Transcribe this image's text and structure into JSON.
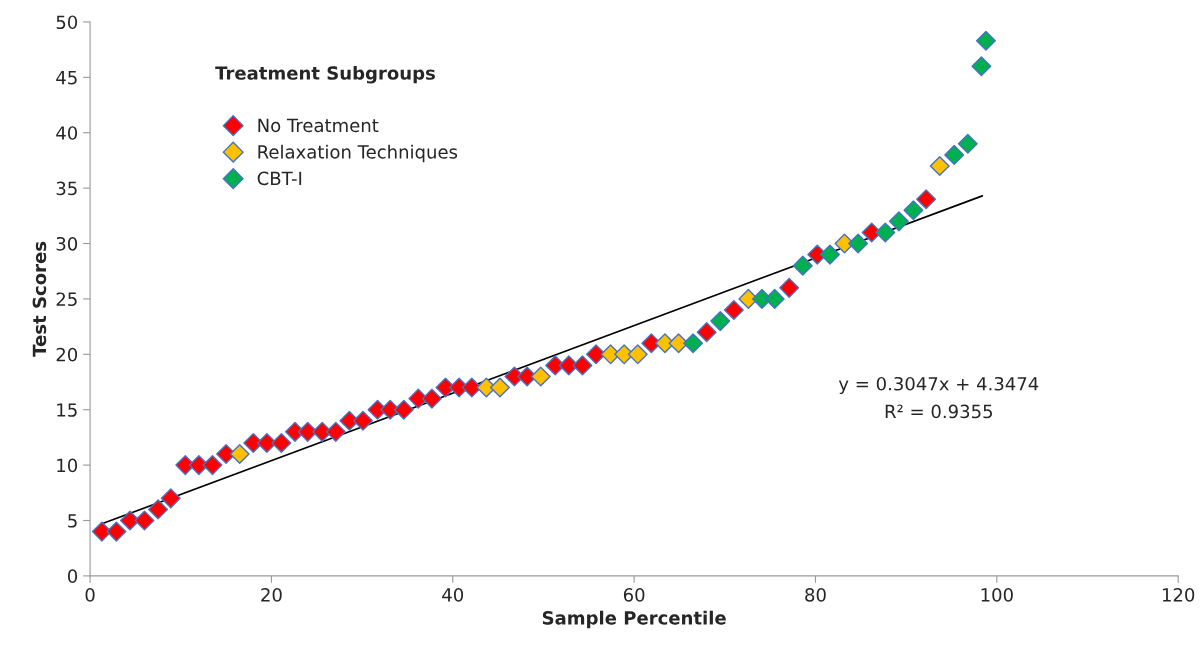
{
  "chart_data": {
    "type": "scatter",
    "xlabel": "Sample Percentile",
    "ylabel": "Test Scores",
    "legend_title": "Treatment Subgroups",
    "xlim": [
      0,
      120
    ],
    "xticks": [
      0,
      20,
      40,
      60,
      80,
      100,
      120
    ],
    "ylim": [
      0,
      50
    ],
    "yticks": [
      0,
      5,
      10,
      15,
      20,
      25,
      30,
      35,
      40,
      45,
      50
    ],
    "grid": false,
    "legend": "top left",
    "marker": "diamond",
    "series": [
      {
        "name": "No Treatment",
        "color": "#ff0000",
        "x": [
          1.3,
          2.9,
          4.4,
          6.0,
          7.5,
          8.9,
          10.5,
          12.0,
          13.5,
          15.0,
          18.0,
          19.5,
          21.1,
          22.6,
          24.0,
          25.6,
          27.1,
          28.6,
          30.1,
          31.7,
          33.1,
          34.6,
          36.2,
          37.7,
          39.2,
          40.7,
          42.1,
          46.8,
          48.2,
          51.3,
          52.8,
          54.3,
          55.8,
          61.9,
          68.0,
          71.0,
          77.1,
          80.2,
          86.2,
          92.2
        ],
        "values": [
          4,
          4,
          5,
          5,
          6,
          7,
          10,
          10,
          10,
          11,
          12,
          12,
          12,
          13,
          13,
          13,
          13,
          14,
          14,
          15,
          15,
          15,
          16,
          16,
          17,
          17,
          17,
          18,
          18,
          19,
          19,
          19,
          20,
          21,
          22,
          24,
          26,
          29,
          31,
          34
        ]
      },
      {
        "name": "Relaxation Techniques",
        "color": "#ffc000",
        "x": [
          16.5,
          43.7,
          45.2,
          49.7,
          57.4,
          58.9,
          60.4,
          63.4,
          64.9,
          72.6,
          83.2,
          93.7
        ],
        "values": [
          11,
          17,
          17,
          18,
          20,
          20,
          20,
          21,
          21,
          25,
          30,
          37
        ]
      },
      {
        "name": "CBT-I",
        "color": "#00b050",
        "x": [
          66.5,
          69.5,
          74.1,
          75.5,
          78.6,
          81.6,
          84.7,
          87.7,
          89.2,
          90.8,
          95.3,
          96.8,
          98.3,
          98.8
        ],
        "values": [
          21,
          23,
          25,
          25,
          28,
          29,
          30,
          31,
          32,
          33,
          38,
          39,
          46,
          48.3
        ]
      },
      {
        "type": "line",
        "color": "#000000",
        "marker": "none",
        "x": [
          1.3,
          98.4
        ],
        "values": [
          4.7,
          34.3
        ]
      }
    ],
    "annotations": [
      "y = 0.3047x + 4.3474",
      "R² = 0.9355"
    ]
  }
}
